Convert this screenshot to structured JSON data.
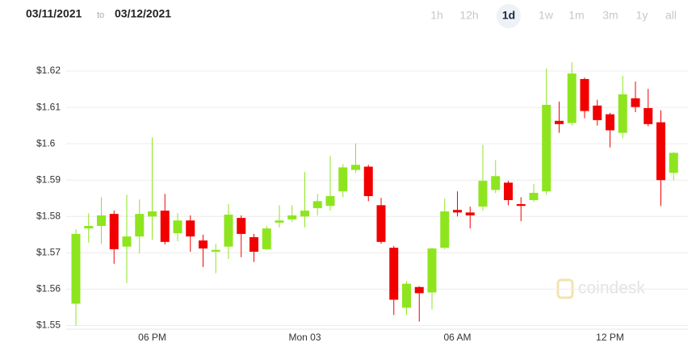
{
  "header": {
    "from": "03/11/2021",
    "to_word": "to",
    "to": "03/12/2021",
    "ranges": [
      "1h",
      "12h",
      "1d",
      "1w",
      "1m",
      "3m",
      "1y",
      "all"
    ],
    "selected": 2
  },
  "watermark": "coindesk",
  "chart_data": {
    "type": "candlestick",
    "categories": [
      null,
      null,
      null,
      null,
      null,
      null,
      "06 PM",
      null,
      null,
      null,
      null,
      null,
      null,
      null,
      null,
      null,
      null,
      null,
      "Mon 03",
      null,
      null,
      null,
      null,
      null,
      null,
      null,
      null,
      null,
      null,
      null,
      "06 AM",
      null,
      null,
      null,
      null,
      null,
      null,
      null,
      null,
      null,
      null,
      null,
      "12 PM",
      null,
      null,
      null,
      null,
      null
    ],
    "open": [
      1.556,
      1.5767,
      1.5774,
      1.5807,
      1.5717,
      1.5745,
      1.58,
      1.5816,
      1.5754,
      1.5789,
      1.5734,
      1.5703,
      1.5717,
      1.5796,
      1.5743,
      1.571,
      1.5783,
      1.5792,
      1.58,
      1.5823,
      1.5829,
      1.5869,
      1.5928,
      1.5937,
      1.5831,
      1.5714,
      1.5549,
      1.5606,
      1.5591,
      1.5714,
      1.5818,
      1.5811,
      1.5827,
      1.5873,
      1.5893,
      1.5834,
      1.5845,
      1.5869,
      1.6063,
      1.6057,
      1.6178,
      1.6105,
      1.6081,
      1.603,
      1.6125,
      1.6098,
      1.6059,
      1.592
    ],
    "high": [
      1.5765,
      1.5809,
      1.5853,
      1.5816,
      1.586,
      1.5847,
      1.6017,
      1.5862,
      1.5809,
      1.5803,
      1.575,
      1.5725,
      1.5834,
      1.5803,
      1.5752,
      1.5774,
      1.5831,
      1.5831,
      1.5922,
      1.5862,
      1.5966,
      1.5944,
      1.6001,
      1.5942,
      1.5851,
      1.5719,
      1.5622,
      1.5608,
      1.5714,
      1.5849,
      1.5869,
      1.5827,
      1.5997,
      1.5955,
      1.5898,
      1.5853,
      1.5889,
      1.6207,
      1.6116,
      1.6224,
      1.6182,
      1.6121,
      1.6085,
      1.6187,
      1.6171,
      1.6151,
      1.6092,
      1.5977
    ],
    "low": [
      1.55,
      1.5728,
      1.5725,
      1.567,
      1.5617,
      1.5699,
      1.5736,
      1.5723,
      1.5732,
      1.5703,
      1.5661,
      1.5644,
      1.5683,
      1.5688,
      1.5675,
      1.5708,
      1.577,
      1.5785,
      1.577,
      1.5803,
      1.5816,
      1.5853,
      1.592,
      1.5842,
      1.5725,
      1.5529,
      1.5529,
      1.5511,
      1.5544,
      1.571,
      1.58,
      1.5767,
      1.5816,
      1.5864,
      1.5831,
      1.5787,
      1.584,
      1.586,
      1.603,
      1.605,
      1.607,
      1.605,
      1.599,
      1.6015,
      1.6087,
      1.6048,
      1.5829,
      1.59
    ],
    "close": [
      1.5752,
      1.5774,
      1.5803,
      1.571,
      1.5745,
      1.5807,
      1.5814,
      1.573,
      1.5789,
      1.5745,
      1.5712,
      1.5708,
      1.5805,
      1.5752,
      1.5703,
      1.5767,
      1.5789,
      1.5803,
      1.5816,
      1.5842,
      1.5856,
      1.5935,
      1.5942,
      1.5856,
      1.573,
      1.5571,
      1.5615,
      1.5589,
      1.5712,
      1.5814,
      1.5811,
      1.5803,
      1.5898,
      1.5911,
      1.5845,
      1.5829,
      1.5865,
      1.6107,
      1.6054,
      1.6193,
      1.609,
      1.6065,
      1.6037,
      1.6136,
      1.6101,
      1.6054,
      1.59,
      1.5975
    ],
    "up_color": "#8ee51f",
    "down_color": "#f20000",
    "ylim": [
      1.549,
      1.624
    ],
    "yticks": [
      {
        "value": 1.55,
        "label": "$1.55"
      },
      {
        "value": 1.56,
        "label": "$1.56"
      },
      {
        "value": 1.57,
        "label": "$1.57"
      },
      {
        "value": 1.58,
        "label": "$1.58"
      },
      {
        "value": 1.59,
        "label": "$1.59"
      },
      {
        "value": 1.6,
        "label": "$1.6"
      },
      {
        "value": 1.61,
        "label": "$1.61"
      },
      {
        "value": 1.62,
        "label": "$1.62"
      }
    ],
    "grid": true
  }
}
